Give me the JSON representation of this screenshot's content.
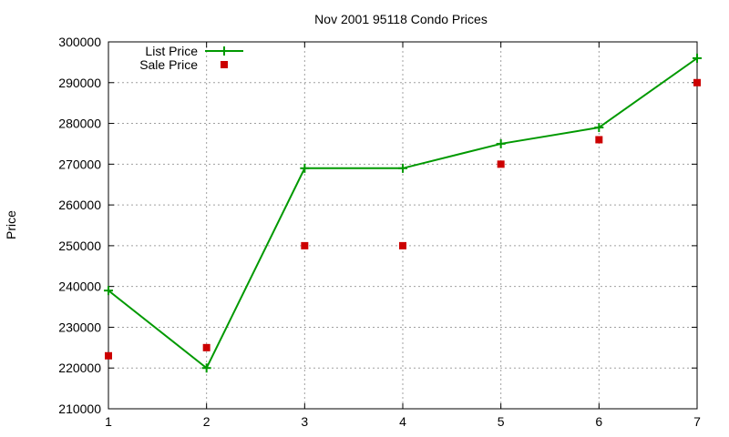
{
  "chart_data": {
    "type": "line",
    "title": "Nov 2001 95118 Condo Prices",
    "xlabel": "",
    "ylabel": "Price",
    "x": [
      1,
      2,
      3,
      4,
      5,
      6,
      7
    ],
    "xlim": [
      1,
      7
    ],
    "ylim": [
      210000,
      300000
    ],
    "xticks": [
      "1",
      "2",
      "3",
      "4",
      "5",
      "6",
      "7"
    ],
    "yticks": [
      "210000",
      "220000",
      "230000",
      "240000",
      "250000",
      "260000",
      "270000",
      "280000",
      "290000",
      "300000"
    ],
    "grid": true,
    "legend_position": "top-left",
    "series": [
      {
        "name": "List Price",
        "style": "line-with-plus-markers",
        "color": "#009900",
        "values": [
          239000,
          220000,
          269000,
          269000,
          275000,
          279000,
          296000
        ]
      },
      {
        "name": "Sale Price",
        "style": "square-points",
        "color": "#cc0000",
        "values": [
          223000,
          225000,
          250000,
          250000,
          270000,
          276000,
          290000
        ]
      }
    ]
  }
}
